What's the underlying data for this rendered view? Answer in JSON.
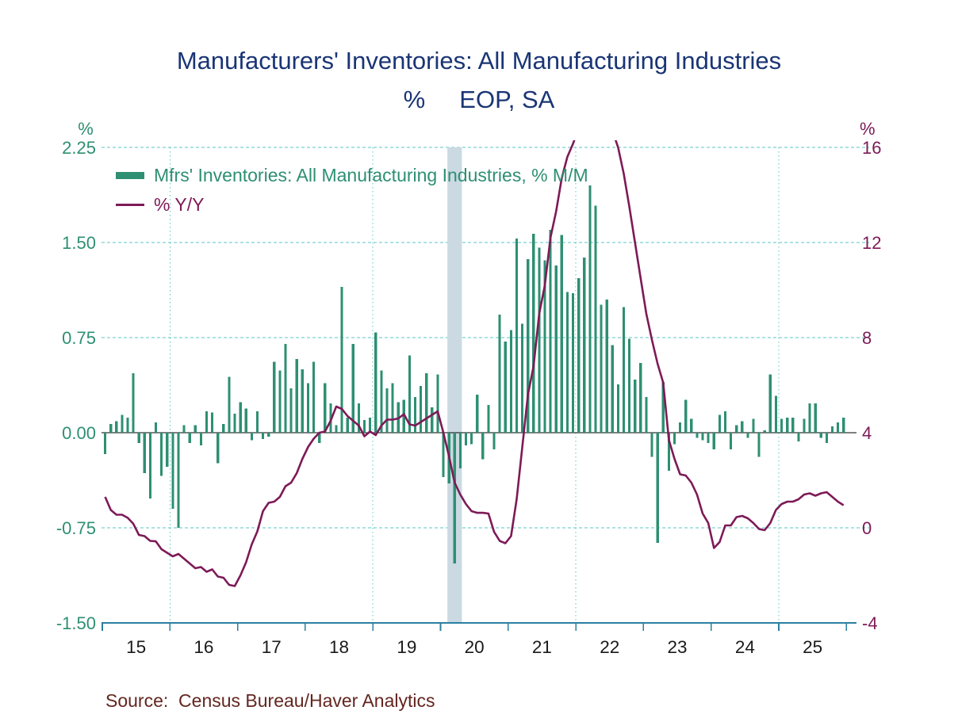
{
  "title": {
    "line1": "Manufacturers' Inventories: All Manufacturing Industries",
    "line2": "%     EOP, SA"
  },
  "legend": {
    "series1_label": "Mfrs' Inventories: All Manufacturing Industries, % M/M",
    "series2_label": "% Y/Y"
  },
  "source": "Source:  Census Bureau/Haver Analytics",
  "axis": {
    "left_unit": "%",
    "right_unit": "%",
    "left_tick_labels": [
      "2.25",
      "1.50",
      "0.75",
      "0.00",
      "-0.75",
      "-1.50"
    ],
    "left_tick_values": [
      2.25,
      1.5,
      0.75,
      0,
      -0.75,
      -1.5
    ],
    "right_tick_labels": [
      "16",
      "12",
      "8",
      "4",
      "0",
      "-4"
    ],
    "right_tick_values": [
      16,
      12,
      8,
      4,
      0,
      -4
    ],
    "x_tick_labels": [
      "15",
      "16",
      "17",
      "18",
      "19",
      "20",
      "21",
      "22",
      "23",
      "24",
      "25"
    ]
  },
  "colors": {
    "bar_green": "#2E8F72",
    "line_purple": "#7D1A57",
    "title_navy": "#1A3575",
    "grid_teal": "#5BC4C6",
    "axis_teal": "#2B7FA3",
    "recession_band": "#CAD9E2",
    "zero_line": "#000000",
    "x_label_black": "#1A1A1A",
    "source_maroon": "#63261F"
  },
  "chart_data": {
    "type": "combo_bar_line",
    "title": "Manufacturers' Inventories: All Manufacturing Industries",
    "subtitle": "% EOP, SA",
    "x_start": "2015-01",
    "x_freq": "monthly",
    "x_axis_year_labels": [
      "15",
      "16",
      "17",
      "18",
      "19",
      "20",
      "21",
      "22",
      "23",
      "24",
      "25"
    ],
    "left_ylim": [
      -1.5,
      2.25
    ],
    "right_ylim": [
      -4,
      16
    ],
    "grid": "dashed-horizontal, dotted-vertical every 3 years (2016, 2019, 2022, 2025)",
    "legend_position": "top-left-inside",
    "recession_band": {
      "from": "2020-02",
      "to": "2020-04"
    },
    "series": [
      {
        "name": "Mfrs' Inventories: All Manufacturing Industries, % M/M",
        "type": "bar",
        "axis": "left",
        "values": [
          -0.17,
          0.07,
          0.09,
          0.14,
          0.12,
          0.47,
          -0.08,
          -0.32,
          -0.52,
          0.08,
          -0.34,
          -0.27,
          -0.6,
          -0.75,
          0.06,
          -0.08,
          0.06,
          -0.1,
          0.17,
          0.16,
          -0.24,
          0.07,
          0.44,
          0.15,
          0.24,
          0.19,
          -0.06,
          0.17,
          -0.05,
          -0.03,
          0.56,
          0.49,
          0.7,
          0.35,
          0.58,
          0.5,
          0.39,
          0.56,
          -0.08,
          0.39,
          0.23,
          0.06,
          1.15,
          0.12,
          0.7,
          0.23,
          0.1,
          0.12,
          0.79,
          0.49,
          0.35,
          0.39,
          0.24,
          0.26,
          0.61,
          0.28,
          0.37,
          0.47,
          0.2,
          0.46,
          -0.35,
          -0.4,
          -1.03,
          -0.28,
          -0.1,
          -0.09,
          0.3,
          -0.21,
          0.22,
          -0.13,
          0.93,
          0.72,
          0.81,
          1.53,
          0.86,
          1.37,
          1.57,
          1.46,
          1.36,
          1.6,
          1.32,
          1.56,
          1.11,
          1.1,
          1.22,
          1.38,
          1.95,
          1.79,
          1.01,
          1.05,
          0.69,
          0.38,
          0.99,
          0.74,
          0.42,
          0.55,
          0.28,
          -0.19,
          -0.87,
          0.4,
          -0.3,
          -0.09,
          0.08,
          0.26,
          0.11,
          -0.04,
          -0.06,
          -0.08,
          -0.13,
          0.14,
          0.17,
          -0.13,
          0.06,
          0.09,
          -0.04,
          0.11,
          -0.19,
          0.02,
          0.46,
          0.29,
          0.11,
          0.12,
          0.12,
          -0.07,
          0.11,
          0.23,
          0.23,
          -0.04,
          -0.08,
          0.05,
          0.08,
          0.12
        ]
      },
      {
        "name": "% Y/Y",
        "type": "line",
        "axis": "right",
        "note": "values above 16.3 are clipped at the top of the plot in the original",
        "values": [
          1.3,
          0.75,
          0.55,
          0.55,
          0.42,
          0.17,
          -0.3,
          -0.35,
          -0.55,
          -0.57,
          -0.9,
          -1.05,
          -1.2,
          -1.1,
          -1.3,
          -1.5,
          -1.7,
          -1.65,
          -1.85,
          -1.75,
          -2.05,
          -2.1,
          -2.4,
          -2.45,
          -2.0,
          -1.45,
          -0.7,
          -0.15,
          0.7,
          1.05,
          1.1,
          1.3,
          1.75,
          1.9,
          2.3,
          2.9,
          3.4,
          3.75,
          4.0,
          4.05,
          4.5,
          5.1,
          5.0,
          4.7,
          4.5,
          4.3,
          3.85,
          4.05,
          3.9,
          4.3,
          4.55,
          4.55,
          4.6,
          4.78,
          4.35,
          4.3,
          4.45,
          4.6,
          4.75,
          4.9,
          4.0,
          3.0,
          1.9,
          1.4,
          1.0,
          0.7,
          0.63,
          0.63,
          0.6,
          -0.17,
          -0.55,
          -0.65,
          -0.35,
          1.2,
          3.4,
          5.6,
          6.8,
          9.0,
          10.2,
          12.2,
          13.3,
          14.7,
          15.6,
          16.15,
          16.8,
          17.3,
          17.6,
          17.8,
          17.7,
          17.3,
          16.7,
          16.0,
          14.9,
          13.5,
          12.0,
          10.5,
          9.0,
          7.9,
          6.9,
          6.1,
          3.7,
          2.9,
          2.25,
          2.2,
          1.9,
          1.4,
          0.6,
          0.2,
          -0.85,
          -0.6,
          0.1,
          0.1,
          0.45,
          0.5,
          0.4,
          0.2,
          -0.05,
          -0.1,
          0.2,
          0.75,
          1.0,
          1.1,
          1.1,
          1.2,
          1.4,
          1.45,
          1.35,
          1.45,
          1.5,
          1.3,
          1.1,
          0.95
        ]
      }
    ]
  }
}
